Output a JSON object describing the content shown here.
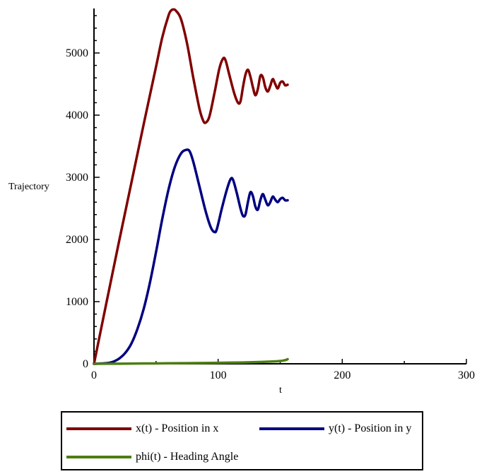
{
  "chart_data": {
    "type": "line",
    "title": "",
    "xlabel": "t",
    "ylabel": "Trajectory",
    "xlim": [
      0,
      300
    ],
    "ylim": [
      0,
      5800
    ],
    "x_ticks": [
      0,
      100,
      200,
      300
    ],
    "y_ticks": [
      0,
      1000,
      2000,
      3000,
      4000,
      5000
    ],
    "grid": false,
    "legend_position": "bottom",
    "series": [
      {
        "name": "x(t) - Position in x",
        "color": "#800000",
        "points": [
          [
            0,
            0
          ],
          [
            10,
            980
          ],
          [
            20,
            1950
          ],
          [
            30,
            2900
          ],
          [
            40,
            3850
          ],
          [
            50,
            4780
          ],
          [
            55,
            5250
          ],
          [
            60,
            5600
          ],
          [
            62,
            5680
          ],
          [
            64,
            5700
          ],
          [
            66,
            5680
          ],
          [
            70,
            5550
          ],
          [
            75,
            5150
          ],
          [
            80,
            4600
          ],
          [
            85,
            4100
          ],
          [
            88,
            3910
          ],
          [
            90,
            3880
          ],
          [
            93,
            3980
          ],
          [
            97,
            4350
          ],
          [
            101,
            4750
          ],
          [
            104,
            4910
          ],
          [
            106,
            4880
          ],
          [
            109,
            4650
          ],
          [
            113,
            4350
          ],
          [
            116,
            4200
          ],
          [
            118,
            4220
          ],
          [
            120,
            4450
          ],
          [
            122,
            4650
          ],
          [
            124,
            4730
          ],
          [
            126,
            4620
          ],
          [
            128,
            4450
          ],
          [
            130,
            4320
          ],
          [
            132,
            4420
          ],
          [
            134,
            4630
          ],
          [
            136,
            4610
          ],
          [
            138,
            4450
          ],
          [
            140,
            4380
          ],
          [
            142,
            4470
          ],
          [
            144,
            4580
          ],
          [
            146,
            4500
          ],
          [
            148,
            4430
          ],
          [
            150,
            4520
          ],
          [
            152,
            4540
          ],
          [
            154,
            4480
          ],
          [
            156,
            4490
          ]
        ]
      },
      {
        "name": "y(t) - Position in y",
        "color": "#000080",
        "points": [
          [
            0,
            0
          ],
          [
            10,
            10
          ],
          [
            15,
            30
          ],
          [
            20,
            80
          ],
          [
            25,
            170
          ],
          [
            30,
            320
          ],
          [
            35,
            560
          ],
          [
            40,
            880
          ],
          [
            45,
            1300
          ],
          [
            50,
            1800
          ],
          [
            55,
            2330
          ],
          [
            60,
            2800
          ],
          [
            65,
            3160
          ],
          [
            70,
            3380
          ],
          [
            74,
            3440
          ],
          [
            77,
            3420
          ],
          [
            80,
            3250
          ],
          [
            85,
            2850
          ],
          [
            90,
            2450
          ],
          [
            94,
            2200
          ],
          [
            97,
            2120
          ],
          [
            99,
            2170
          ],
          [
            103,
            2500
          ],
          [
            107,
            2800
          ],
          [
            110,
            2970
          ],
          [
            112,
            2960
          ],
          [
            115,
            2750
          ],
          [
            118,
            2500
          ],
          [
            120,
            2380
          ],
          [
            122,
            2400
          ],
          [
            124,
            2600
          ],
          [
            126,
            2760
          ],
          [
            128,
            2700
          ],
          [
            130,
            2530
          ],
          [
            132,
            2480
          ],
          [
            134,
            2630
          ],
          [
            136,
            2730
          ],
          [
            138,
            2640
          ],
          [
            140,
            2550
          ],
          [
            142,
            2600
          ],
          [
            144,
            2690
          ],
          [
            146,
            2640
          ],
          [
            148,
            2600
          ],
          [
            150,
            2650
          ],
          [
            152,
            2670
          ],
          [
            154,
            2630
          ],
          [
            156,
            2630
          ]
        ]
      },
      {
        "name": "phi(t) - Heading Angle",
        "color": "#4d7e12",
        "points": [
          [
            0,
            0
          ],
          [
            20,
            2
          ],
          [
            40,
            5
          ],
          [
            60,
            8
          ],
          [
            80,
            12
          ],
          [
            100,
            16
          ],
          [
            120,
            22
          ],
          [
            135,
            30
          ],
          [
            145,
            38
          ],
          [
            150,
            45
          ],
          [
            153,
            55
          ],
          [
            155,
            65
          ],
          [
            156,
            75
          ]
        ]
      }
    ]
  }
}
